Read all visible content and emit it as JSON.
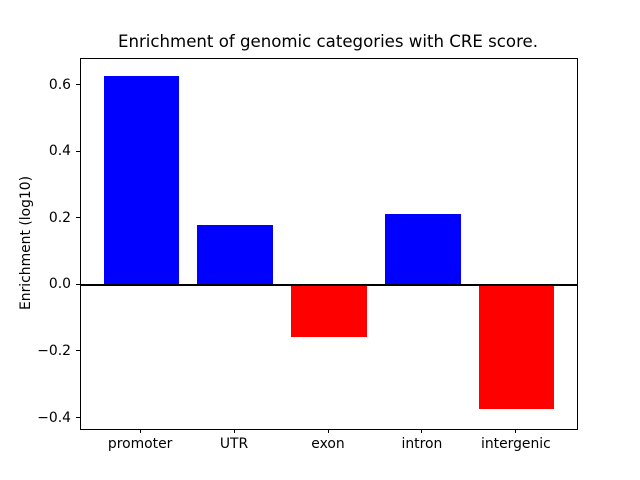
{
  "chart_data": {
    "type": "bar",
    "title": "Enrichment of genomic categories with CRE score.",
    "xlabel": "",
    "ylabel": "Enrichment (log10)",
    "categories": [
      "promoter",
      "UTR",
      "exon",
      "intron",
      "intergenic"
    ],
    "values": [
      0.63,
      0.18,
      -0.155,
      0.215,
      -0.37
    ],
    "bar_colors": [
      "#0000ff",
      "#0000ff",
      "#ff0000",
      "#0000ff",
      "#ff0000"
    ],
    "positive_color": "#0000ff",
    "negative_color": "#ff0000",
    "bar_width_fraction": 0.8,
    "ylim": [
      -0.43,
      0.68
    ],
    "yticks": [
      {
        "value": 0.6,
        "label": "0.6"
      },
      {
        "value": 0.4,
        "label": "0.4"
      },
      {
        "value": 0.2,
        "label": "0.2"
      },
      {
        "value": 0.0,
        "label": "0.0"
      },
      {
        "value": -0.2,
        "label": "−0.2"
      },
      {
        "value": -0.4,
        "label": "−0.4"
      }
    ],
    "zero_line": true,
    "grid": false,
    "legend": "none",
    "axis_color": "#000000",
    "background_color": "#ffffff"
  }
}
